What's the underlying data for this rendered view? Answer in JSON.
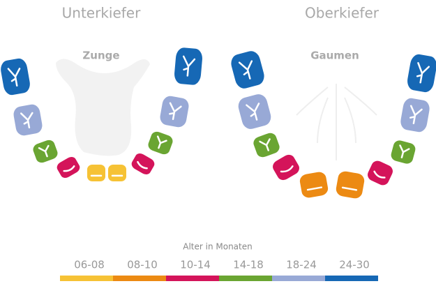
{
  "lower_jaw": {
    "title": "Unterkiefer",
    "inner_label": "Zunge"
  },
  "upper_jaw": {
    "title": "Oberkiefer",
    "inner_label": "Gaumen"
  },
  "legend": {
    "title": "Alter in Monaten",
    "items": [
      {
        "label": "06-08",
        "color": "#f6c235"
      },
      {
        "label": "08-10",
        "color": "#ec8a13"
      },
      {
        "label": "10-14",
        "color": "#d4145a"
      },
      {
        "label": "14-18",
        "color": "#6aa532"
      },
      {
        "label": "18-24",
        "color": "#98a9d6"
      },
      {
        "label": "24-30",
        "color": "#1668b5"
      }
    ]
  }
}
